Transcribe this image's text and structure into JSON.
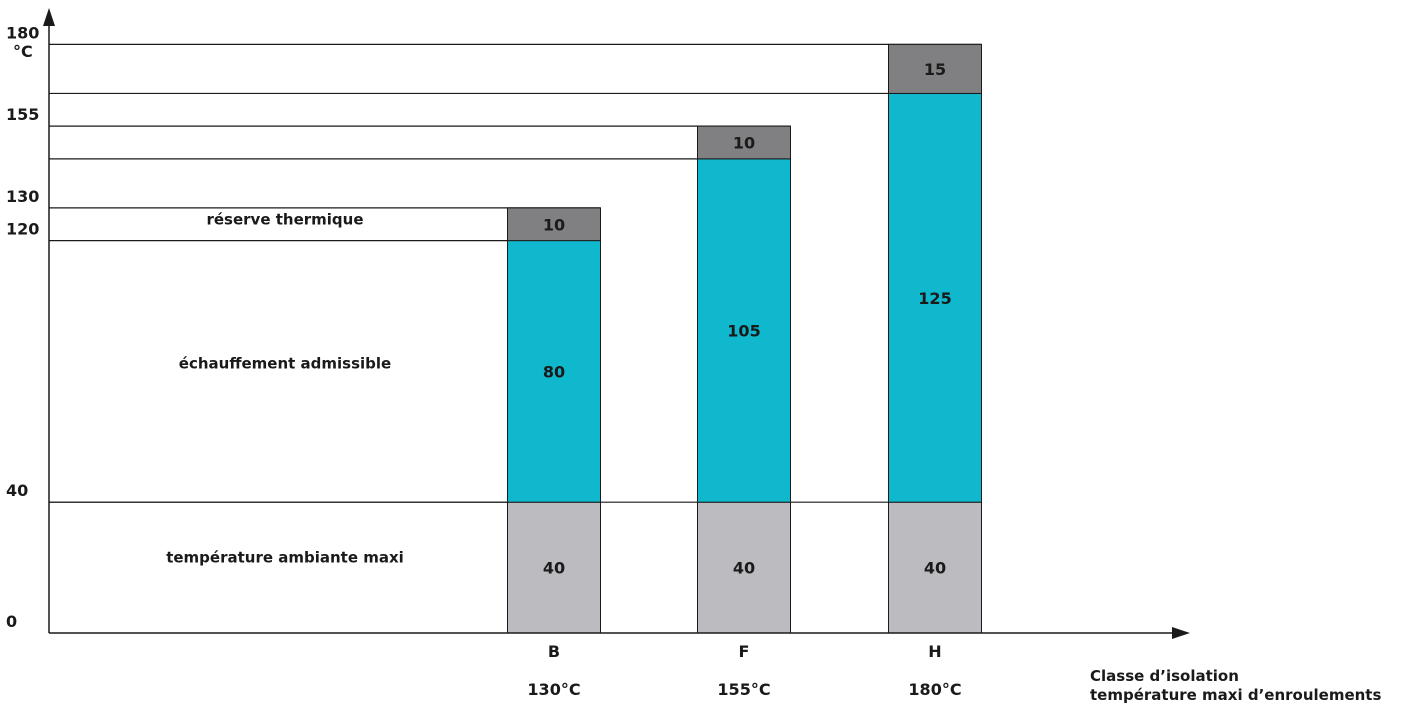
{
  "chart_data": {
    "type": "bar",
    "stacked": true,
    "ylabel": "°C",
    "ylim": [
      0,
      180
    ],
    "yticks": [
      0,
      40,
      120,
      130,
      155,
      180
    ],
    "grid": false,
    "categories": [
      "B",
      "F",
      "H"
    ],
    "category_temps": [
      "130°C",
      "155°C",
      "180°C"
    ],
    "xlabel_lines": [
      "Classe d’isolation",
      "température maxi d’enroulements"
    ],
    "series": [
      {
        "name": "température ambiante maxi",
        "values": [
          40,
          40,
          40
        ],
        "color": "#bcbcc0"
      },
      {
        "name": "échauffement admissible",
        "values": [
          80,
          105,
          125
        ],
        "color": "#0fb8cc"
      },
      {
        "name": "réserve thermique",
        "values": [
          10,
          10,
          15
        ],
        "color": "#808083"
      }
    ]
  }
}
